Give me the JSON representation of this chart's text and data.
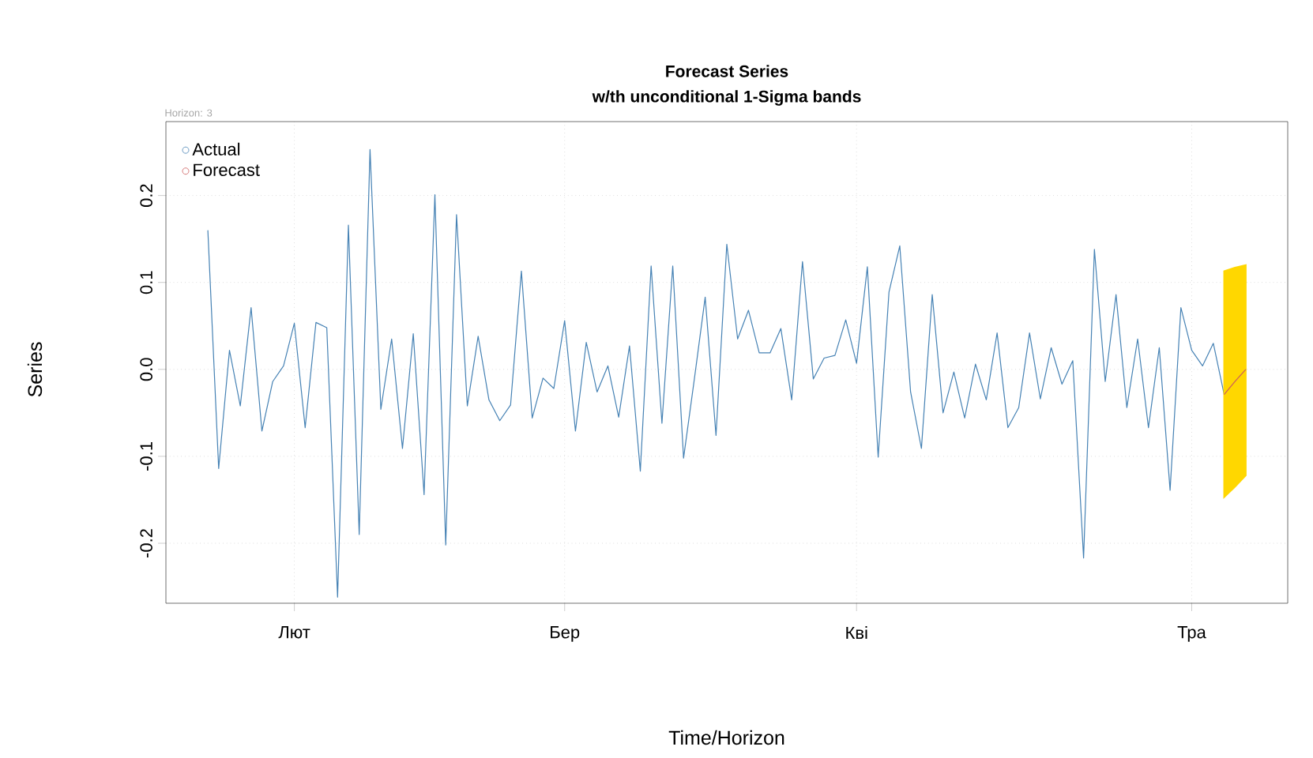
{
  "chart_data": {
    "type": "line",
    "title": "Forecast Series",
    "subtitle": "w/th unconditional 1-Sigma bands",
    "xlabel": "Time/Horizon",
    "ylabel": "Series",
    "annotations": [
      "Horizon: 3"
    ],
    "categories": [
      null,
      null,
      null,
      null,
      null,
      null,
      null,
      null,
      "Лют",
      null,
      null,
      null,
      null,
      null,
      null,
      null,
      null,
      null,
      null,
      null,
      null,
      null,
      null,
      null,
      null,
      null,
      null,
      null,
      null,
      null,
      null,
      null,
      null,
      "Бер",
      null,
      null,
      null,
      null,
      null,
      null,
      null,
      null,
      null,
      null,
      null,
      null,
      null,
      null,
      null,
      null,
      null,
      null,
      null,
      null,
      null,
      null,
      null,
      null,
      null,
      null,
      "Кві",
      null,
      null,
      null,
      null,
      null,
      null,
      null,
      null,
      null,
      null,
      null,
      null,
      null,
      null,
      null,
      null,
      null,
      null,
      null,
      null,
      null,
      null,
      null,
      null,
      null,
      null,
      null,
      null,
      null,
      null,
      "Тра",
      null,
      null,
      null,
      null,
      null
    ],
    "ylim": [
      -0.269,
      0.285
    ],
    "yticks": [
      {
        "value": -0.2,
        "label": "-0.2"
      },
      {
        "value": -0.1,
        "label": "-0.1"
      },
      {
        "value": 0,
        "label": "0.0"
      },
      {
        "value": 0.1,
        "label": "0.1"
      },
      {
        "value": 0.2,
        "label": "0.2"
      }
    ],
    "grid": true,
    "legend": "top left",
    "series": [
      {
        "name": "Actual",
        "color": "#4682b4",
        "values": [
          0.16,
          -0.114,
          0.022,
          -0.042,
          0.071,
          -0.071,
          -0.014,
          0.004,
          0.053,
          -0.067,
          0.054,
          0.048,
          -0.262,
          0.166,
          -0.19,
          0.253,
          -0.046,
          0.035,
          -0.091,
          0.041,
          -0.144,
          0.201,
          -0.202,
          0.178,
          -0.042,
          0.038,
          -0.035,
          -0.059,
          -0.041,
          0.113,
          -0.056,
          -0.01,
          -0.022,
          0.056,
          -0.071,
          0.031,
          -0.026,
          0.004,
          -0.055,
          0.027,
          -0.117,
          0.119,
          -0.062,
          0.119,
          -0.102,
          -0.011,
          0.083,
          -0.076,
          0.144,
          0.035,
          0.068,
          0.019,
          0.019,
          0.047,
          -0.035,
          0.124,
          -0.011,
          0.013,
          0.016,
          0.057,
          0.007,
          0.118,
          -0.101,
          0.089,
          0.142,
          -0.026,
          -0.091,
          0.086,
          -0.05,
          -0.003,
          -0.056,
          0.006,
          -0.035,
          0.042,
          -0.067,
          -0.044,
          0.042,
          -0.034,
          0.025,
          -0.017,
          0.01,
          -0.217,
          0.138,
          -0.014,
          0.086,
          -0.044,
          0.035,
          -0.067,
          0.025,
          -0.139,
          0.071,
          0.022,
          0.004,
          0.03,
          -0.029,
          null,
          null
        ]
      },
      {
        "name": "Forecast",
        "color": "#cd5c5c",
        "values": [
          null,
          null,
          null,
          null,
          null,
          null,
          null,
          null,
          null,
          null,
          null,
          null,
          null,
          null,
          null,
          null,
          null,
          null,
          null,
          null,
          null,
          null,
          null,
          null,
          null,
          null,
          null,
          null,
          null,
          null,
          null,
          null,
          null,
          null,
          null,
          null,
          null,
          null,
          null,
          null,
          null,
          null,
          null,
          null,
          null,
          null,
          null,
          null,
          null,
          null,
          null,
          null,
          null,
          null,
          null,
          null,
          null,
          null,
          null,
          null,
          null,
          null,
          null,
          null,
          null,
          null,
          null,
          null,
          null,
          null,
          null,
          null,
          null,
          null,
          null,
          null,
          null,
          null,
          null,
          null,
          null,
          null,
          null,
          null,
          null,
          null,
          null,
          null,
          null,
          null,
          null,
          null,
          null,
          null,
          -0.029,
          -0.014,
          0.0
        ],
        "lower": [
          null,
          null,
          null,
          null,
          null,
          null,
          null,
          null,
          null,
          null,
          null,
          null,
          null,
          null,
          null,
          null,
          null,
          null,
          null,
          null,
          null,
          null,
          null,
          null,
          null,
          null,
          null,
          null,
          null,
          null,
          null,
          null,
          null,
          null,
          null,
          null,
          null,
          null,
          null,
          null,
          null,
          null,
          null,
          null,
          null,
          null,
          null,
          null,
          null,
          null,
          null,
          null,
          null,
          null,
          null,
          null,
          null,
          null,
          null,
          null,
          null,
          null,
          null,
          null,
          null,
          null,
          null,
          null,
          null,
          null,
          null,
          null,
          null,
          null,
          null,
          null,
          null,
          null,
          null,
          null,
          null,
          null,
          null,
          null,
          null,
          null,
          null,
          null,
          null,
          null,
          null,
          null,
          null,
          null,
          -0.147,
          -0.135,
          -0.122
        ],
        "upper": [
          null,
          null,
          null,
          null,
          null,
          null,
          null,
          null,
          null,
          null,
          null,
          null,
          null,
          null,
          null,
          null,
          null,
          null,
          null,
          null,
          null,
          null,
          null,
          null,
          null,
          null,
          null,
          null,
          null,
          null,
          null,
          null,
          null,
          null,
          null,
          null,
          null,
          null,
          null,
          null,
          null,
          null,
          null,
          null,
          null,
          null,
          null,
          null,
          null,
          null,
          null,
          null,
          null,
          null,
          null,
          null,
          null,
          null,
          null,
          null,
          null,
          null,
          null,
          null,
          null,
          null,
          null,
          null,
          null,
          null,
          null,
          null,
          null,
          null,
          null,
          null,
          null,
          null,
          null,
          null,
          null,
          null,
          null,
          null,
          null,
          null,
          null,
          null,
          null,
          null,
          null,
          null,
          null,
          null,
          0.113,
          0.117,
          0.12
        ]
      }
    ]
  }
}
